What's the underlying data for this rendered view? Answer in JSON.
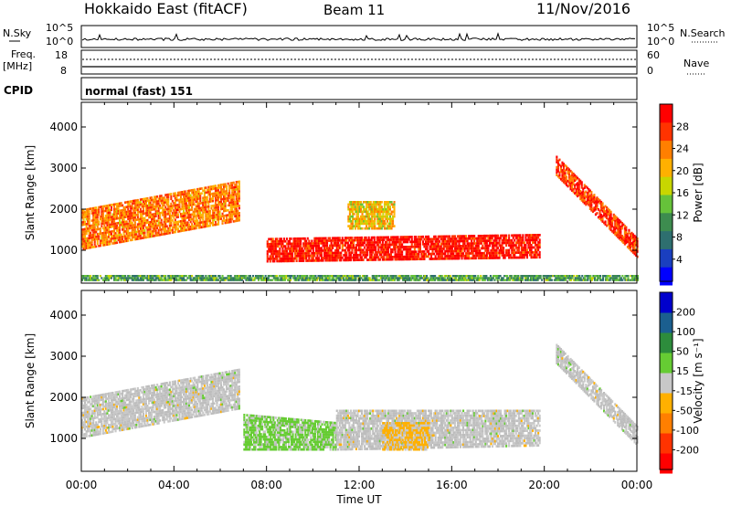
{
  "header": {
    "title": "Hokkaido East (fitACF)",
    "beam": "Beam 11",
    "date": "11/Nov/2016"
  },
  "aux_panels": {
    "nsky_label": "N.Sky",
    "nsearch_label": "N.Search",
    "noise_ticks": [
      "10^5",
      "10^0"
    ],
    "freq_label_line1": "Freq.",
    "freq_label_line2": "[MHz]",
    "freq_ticks": [
      "18",
      "8"
    ],
    "nave_label": "Nave",
    "nave_ticks": [
      "60",
      "0"
    ],
    "cpid_label": "CPID",
    "cpid_value": "normal (fast) 151"
  },
  "colors": {
    "background": "#ffffff",
    "axes": "#000000",
    "velocity_grey": "#bdbdbd",
    "power_scale": [
      "#0000ff",
      "#1a3fbf",
      "#2e6f6f",
      "#3d8c4f",
      "#66c23a",
      "#c8d600",
      "#ffb000",
      "#ff7f00",
      "#ff3300",
      "#ff0000"
    ],
    "velocity_scale": [
      "#ff0000",
      "#ff3300",
      "#ff7f00",
      "#ffb000",
      "#c8c8c8",
      "#66cc33",
      "#2d8c3c",
      "#1b5f8f",
      "#0000cc"
    ]
  },
  "chart_data": [
    {
      "type": "heatmap",
      "name": "power",
      "x_unit": "Time UT",
      "xlabel": "",
      "ylabel": "Slant Range [km]",
      "xlim": [
        "00:00",
        "24:00"
      ],
      "x_ticks": [
        "00:00",
        "04:00",
        "08:00",
        "12:00",
        "16:00",
        "20:00",
        "00:00"
      ],
      "ylim": [
        200,
        4600
      ],
      "y_ticks": [
        1000,
        2000,
        3000,
        4000
      ],
      "colorbar": {
        "label": "Power [dB]",
        "range": [
          0,
          32
        ],
        "ticks": [
          4,
          8,
          12,
          16,
          20,
          24,
          28
        ]
      },
      "echo_bands": [
        {
          "t_start": 0.0,
          "t_end": 6.8,
          "range_low_start": 1000,
          "range_high_start": 2000,
          "range_low_end": 1700,
          "range_high_end": 2700,
          "power_db": 24
        },
        {
          "t_start": 8.0,
          "t_end": 19.8,
          "range_low_start": 700,
          "range_high_start": 1300,
          "range_low_end": 800,
          "range_high_end": 1400,
          "power_db": 30
        },
        {
          "t_start": 11.5,
          "t_end": 13.5,
          "range_low_start": 1500,
          "range_high_start": 2200,
          "range_low_end": 1500,
          "range_high_end": 2200,
          "power_db": 20
        },
        {
          "t_start": 20.5,
          "t_end": 24.0,
          "range_low_start": 2800,
          "range_high_start": 3300,
          "range_low_end": 800,
          "range_high_end": 1300,
          "power_db": 28
        },
        {
          "t_start": 0.0,
          "t_end": 24.0,
          "range_low_start": 250,
          "range_high_start": 400,
          "range_low_end": 250,
          "range_high_end": 400,
          "power_db": 12
        }
      ]
    },
    {
      "type": "heatmap",
      "name": "velocity",
      "x_unit": "Time UT",
      "xlabel": "Time UT",
      "ylabel": "Slant Range [km]",
      "xlim": [
        "00:00",
        "24:00"
      ],
      "x_ticks": [
        "00:00",
        "04:00",
        "08:00",
        "12:00",
        "16:00",
        "20:00",
        "00:00"
      ],
      "ylim": [
        200,
        4600
      ],
      "y_ticks": [
        1000,
        2000,
        3000,
        4000
      ],
      "colorbar": {
        "label": "Velocity [m s⁻¹]",
        "range": [
          -250,
          250
        ],
        "ticks": [
          200,
          100,
          50,
          15,
          -15,
          -50,
          -100,
          -200
        ]
      },
      "echo_bands": [
        {
          "t_start": 0.0,
          "t_end": 6.8,
          "range_low_start": 1000,
          "range_high_start": 2000,
          "range_low_end": 1700,
          "range_high_end": 2700,
          "velocity": 0
        },
        {
          "t_start": 7.0,
          "t_end": 11.0,
          "range_low_start": 700,
          "range_high_start": 1600,
          "range_low_end": 700,
          "range_high_end": 1400,
          "velocity": 40
        },
        {
          "t_start": 11.0,
          "t_end": 19.8,
          "range_low_start": 700,
          "range_high_start": 1700,
          "range_low_end": 800,
          "range_high_end": 1700,
          "velocity": 0
        },
        {
          "t_start": 13.0,
          "t_end": 15.0,
          "range_low_start": 700,
          "range_high_start": 1400,
          "range_low_end": 700,
          "range_high_end": 1400,
          "velocity": -40
        },
        {
          "t_start": 20.5,
          "t_end": 24.0,
          "range_low_start": 2800,
          "range_high_start": 3300,
          "range_low_end": 800,
          "range_high_end": 1300,
          "velocity": 0
        }
      ]
    }
  ]
}
